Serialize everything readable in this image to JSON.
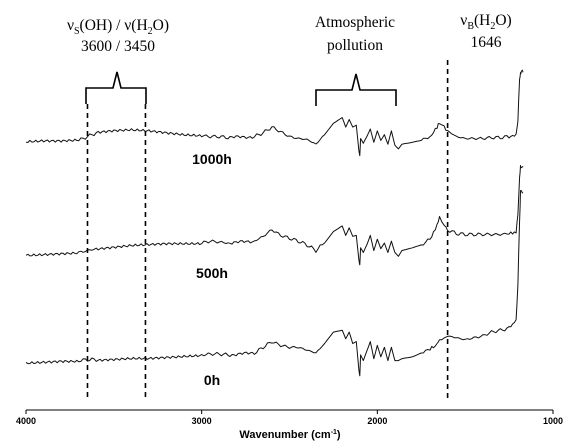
{
  "chart_data": {
    "type": "line",
    "title": "",
    "xlabel_main": "Wavenumber (cm",
    "xlabel_sup": "-1",
    "xlabel_close": ")",
    "ylabel": "",
    "xlim": [
      4000,
      1000
    ],
    "x_reversed": true,
    "x_ticks": [
      "4000",
      "3000",
      "2000",
      "1000"
    ],
    "x_tick_values": [
      4000,
      3000,
      2000,
      1000
    ],
    "grid": false,
    "y_stacked_offset_traces": true,
    "series_x": [
      4000,
      3900,
      3800,
      3700,
      3650,
      3600,
      3500,
      3400,
      3300,
      3200,
      3100,
      3000,
      2950,
      2900,
      2850,
      2700,
      2650,
      2600,
      2550,
      2500,
      2450,
      2400,
      2350,
      2300,
      2250,
      2200,
      2180,
      2160,
      2140,
      2120,
      2105,
      2100,
      2095,
      2080,
      2060,
      2040,
      2020,
      2000,
      1980,
      1960,
      1940,
      1920,
      1900,
      1880,
      1860,
      1800,
      1750,
      1700,
      1680,
      1660,
      1646,
      1620,
      1600,
      1550,
      1500,
      1450,
      1400,
      1350,
      1300,
      1250,
      1230,
      1210,
      1200,
      1190,
      1185,
      1180,
      1170
    ],
    "series": [
      {
        "name": "1000h",
        "values": [
          0.06,
          0.07,
          0.07,
          0.08,
          0.12,
          0.16,
          0.18,
          0.19,
          0.18,
          0.16,
          0.14,
          0.13,
          0.12,
          0.12,
          0.11,
          0.12,
          0.16,
          0.22,
          0.17,
          0.12,
          0.1,
          0.09,
          0.04,
          0.14,
          0.26,
          0.32,
          0.22,
          0.3,
          0.22,
          0.24,
          -0.03,
          -0.08,
          0.1,
          0.05,
          0.12,
          0.2,
          0.06,
          0.18,
          0.08,
          0.14,
          0.04,
          0.18,
          0.03,
          -0.01,
          0.04,
          0.06,
          0.08,
          0.12,
          0.16,
          0.22,
          0.26,
          0.22,
          0.18,
          0.12,
          0.1,
          0.1,
          0.1,
          0.11,
          0.11,
          0.12,
          0.12,
          0.14,
          0.3,
          0.72,
          0.8,
          0.8,
          0.8
        ]
      },
      {
        "name": "500h",
        "values": [
          0.07,
          0.08,
          0.09,
          0.1,
          0.12,
          0.14,
          0.16,
          0.18,
          0.19,
          0.2,
          0.2,
          0.2,
          0.22,
          0.21,
          0.2,
          0.22,
          0.27,
          0.34,
          0.28,
          0.25,
          0.22,
          0.18,
          0.12,
          0.2,
          0.32,
          0.38,
          0.28,
          0.36,
          0.27,
          0.28,
          0.02,
          -0.03,
          0.15,
          0.1,
          0.18,
          0.28,
          0.12,
          0.24,
          0.14,
          0.2,
          0.1,
          0.22,
          0.1,
          0.06,
          0.12,
          0.15,
          0.18,
          0.24,
          0.3,
          0.4,
          0.46,
          0.4,
          0.34,
          0.3,
          0.29,
          0.29,
          0.29,
          0.29,
          0.29,
          0.3,
          0.3,
          0.32,
          0.5,
          0.88,
          1.0,
          1.0,
          1.0
        ]
      },
      {
        "name": "0h",
        "values": [
          0.1,
          0.11,
          0.12,
          0.12,
          0.13,
          0.13,
          0.14,
          0.15,
          0.15,
          0.16,
          0.17,
          0.18,
          0.19,
          0.19,
          0.18,
          0.2,
          0.26,
          0.32,
          0.28,
          0.26,
          0.26,
          0.23,
          0.2,
          0.3,
          0.42,
          0.44,
          0.35,
          0.42,
          0.3,
          0.32,
          0.02,
          -0.04,
          0.18,
          0.12,
          0.22,
          0.32,
          0.14,
          0.28,
          0.16,
          0.26,
          0.12,
          0.26,
          0.12,
          0.12,
          0.14,
          0.16,
          0.2,
          0.24,
          0.26,
          0.3,
          0.34,
          0.36,
          0.38,
          0.36,
          0.34,
          0.36,
          0.38,
          0.42,
          0.44,
          0.46,
          0.5,
          0.56,
          0.9,
          1.6,
          1.9,
          1.9,
          1.9
        ]
      }
    ],
    "annotations": [
      {
        "label_prefix": "ν",
        "label_sub": "S",
        "label_mid": "(OH) / ν(H",
        "label_sub2": "2",
        "label_end": "O)",
        "value": "3600 / 3450"
      },
      {
        "line1": "Atmospheric",
        "line2": "pollution"
      },
      {
        "label_prefix": "ν",
        "label_sub": "B",
        "label_mid": "(H",
        "label_sub2": "2",
        "label_end": "O)",
        "value": "1646"
      }
    ],
    "dashed_lines_x": [
      3650,
      3320,
      1600
    ]
  }
}
